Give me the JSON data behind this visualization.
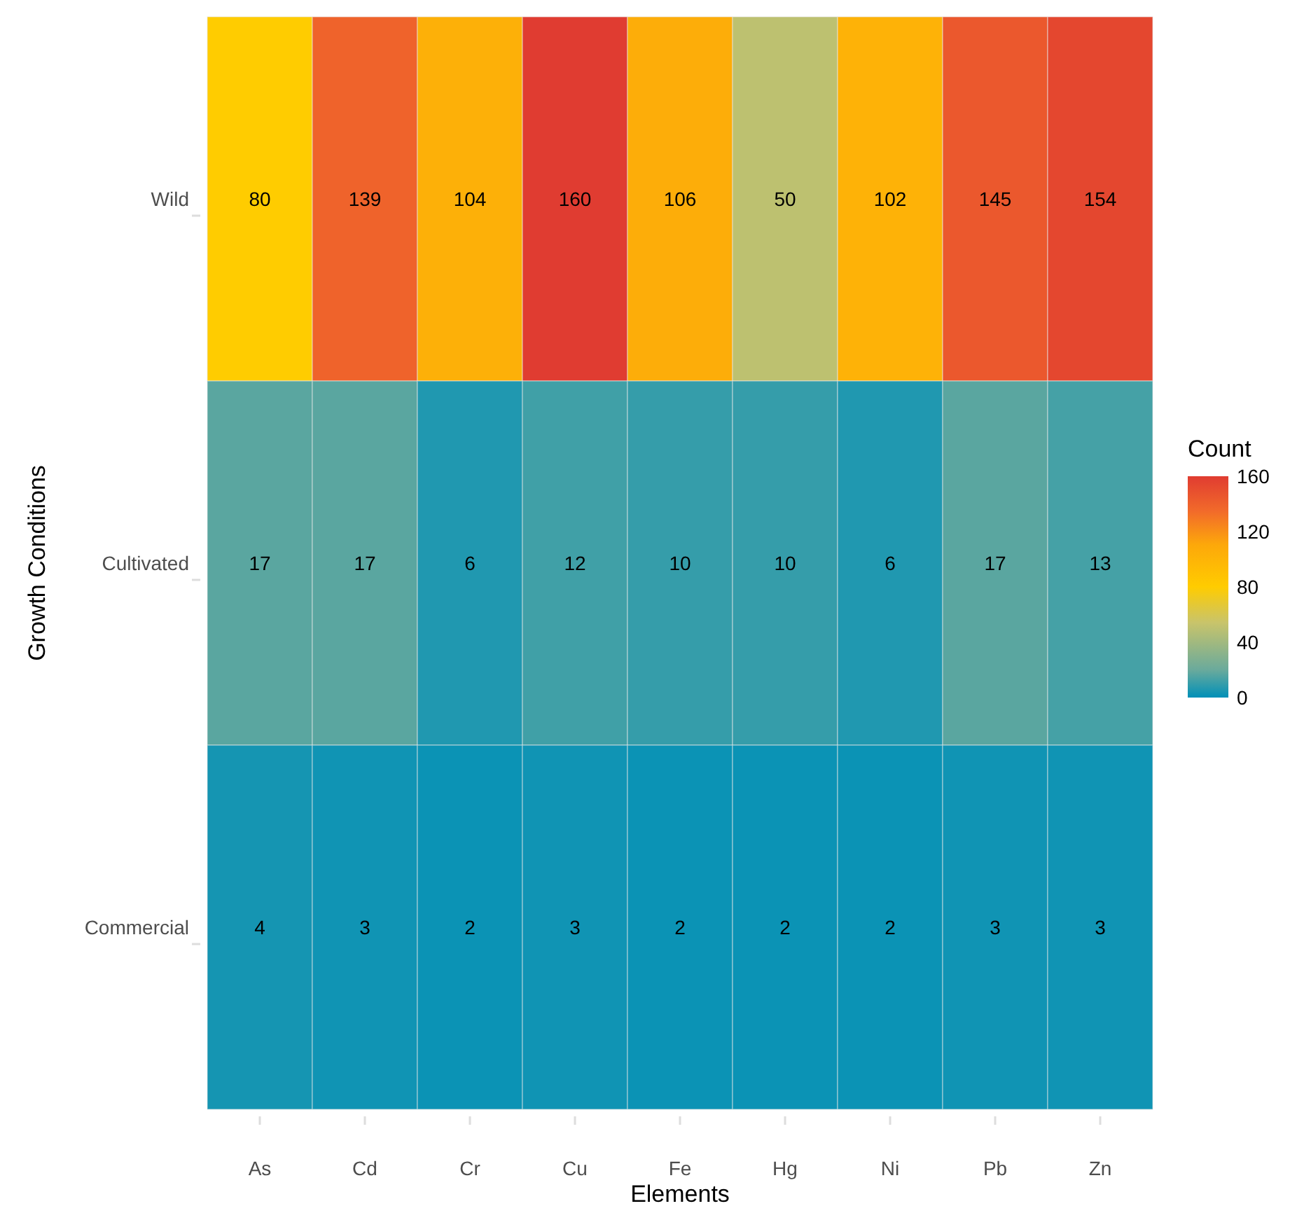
{
  "chart_data": {
    "type": "heatmap",
    "xlabel": "Elements",
    "ylabel": "Growth Conditions",
    "legend_title": "Count",
    "categories": [
      "As",
      "Cd",
      "Cr",
      "Cu",
      "Fe",
      "Hg",
      "Ni",
      "Pb",
      "Zn"
    ],
    "y_categories": [
      "Wild",
      "Cultivated",
      "Commercial"
    ],
    "cells": [
      [
        80,
        139,
        104,
        160,
        106,
        50,
        102,
        145,
        154
      ],
      [
        17,
        17,
        6,
        12,
        10,
        10,
        6,
        17,
        13
      ],
      [
        4,
        3,
        2,
        3,
        2,
        2,
        2,
        3,
        3
      ]
    ],
    "clim": [
      0,
      160
    ],
    "cticks": [
      0,
      40,
      80,
      120,
      160
    ],
    "data_labels": true
  }
}
